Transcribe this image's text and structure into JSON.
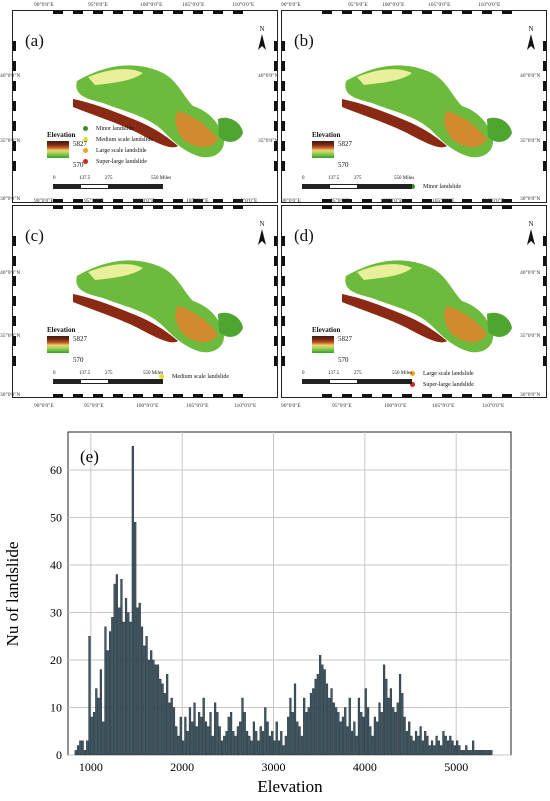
{
  "maps": [
    {
      "label": "(a)",
      "legend": [
        {
          "text": "Minor landslide",
          "color": "#3a8f2b"
        },
        {
          "text": "Medium scale landslide",
          "color": "#d9e43a"
        },
        {
          "text": "Large scale landslide",
          "color": "#f2a31b"
        },
        {
          "text": "Super-large landslide",
          "color": "#d62222"
        }
      ],
      "elevation_title": "Elevation",
      "elev_high": "5827",
      "elev_low": "570",
      "scale": [
        "0",
        "137.5",
        "275",
        "550 Miles"
      ]
    },
    {
      "label": "(b)",
      "legend": [
        {
          "text": "Minor landslide",
          "color": "#3a8f2b"
        }
      ],
      "elevation_title": "Elevation",
      "elev_high": "5827",
      "elev_low": "570",
      "scale": [
        "0",
        "137.5",
        "275",
        "550 Miles"
      ]
    },
    {
      "label": "(c)",
      "legend": [
        {
          "text": "Medium scale landslide",
          "color": "#d9e43a"
        }
      ],
      "elevation_title": "Elevation",
      "elev_high": "5827",
      "elev_low": "570",
      "scale": [
        "0",
        "137.5",
        "275",
        "550 Miles"
      ]
    },
    {
      "label": "(d)",
      "legend": [
        {
          "text": "Large scale landslide",
          "color": "#f2a31b"
        },
        {
          "text": "Super-large landslide",
          "color": "#d62222"
        }
      ],
      "elevation_title": "Elevation",
      "elev_high": "5827",
      "elev_low": "570",
      "scale": [
        "0",
        "137.5",
        "275",
        "550 Miles"
      ]
    }
  ],
  "north_label": "N",
  "lon_labels": [
    "90°0'0\"E",
    "95°0'0\"E",
    "100°0'0\"E",
    "105°0'0\"E",
    "110°0'0\"E"
  ],
  "lat_labels": [
    "40°0'0\"N",
    "35°0'0\"N",
    "30°0'0\"N"
  ],
  "chart_data": {
    "type": "bar",
    "panel_label": "(e)",
    "xlabel": "Elevation",
    "ylabel": "Nu of landslide",
    "xlim": [
      750,
      5600
    ],
    "ylim": [
      0,
      68
    ],
    "xticks": [
      1000,
      2000,
      3000,
      4000,
      5000
    ],
    "yticks": [
      0,
      10,
      20,
      30,
      40,
      50,
      60
    ],
    "grid": true,
    "bar_color": "#3d5866",
    "bin_width": 25,
    "bins": [
      [
        825,
        1
      ],
      [
        850,
        2
      ],
      [
        875,
        3
      ],
      [
        900,
        3
      ],
      [
        925,
        1
      ],
      [
        950,
        3
      ],
      [
        975,
        25
      ],
      [
        1000,
        8
      ],
      [
        1025,
        9
      ],
      [
        1050,
        14
      ],
      [
        1075,
        12
      ],
      [
        1100,
        18
      ],
      [
        1125,
        7
      ],
      [
        1150,
        27
      ],
      [
        1175,
        22
      ],
      [
        1200,
        26
      ],
      [
        1225,
        29
      ],
      [
        1250,
        36
      ],
      [
        1275,
        38
      ],
      [
        1300,
        31
      ],
      [
        1325,
        37
      ],
      [
        1350,
        28
      ],
      [
        1375,
        33
      ],
      [
        1400,
        30
      ],
      [
        1425,
        28
      ],
      [
        1450,
        65
      ],
      [
        1475,
        49
      ],
      [
        1500,
        31
      ],
      [
        1525,
        32
      ],
      [
        1550,
        27
      ],
      [
        1575,
        23
      ],
      [
        1600,
        25
      ],
      [
        1625,
        20
      ],
      [
        1650,
        22
      ],
      [
        1675,
        20
      ],
      [
        1700,
        19
      ],
      [
        1725,
        19
      ],
      [
        1750,
        16
      ],
      [
        1775,
        15
      ],
      [
        1800,
        13
      ],
      [
        1825,
        17
      ],
      [
        1850,
        11
      ],
      [
        1875,
        12
      ],
      [
        1900,
        10
      ],
      [
        1925,
        6
      ],
      [
        1950,
        4
      ],
      [
        1975,
        8
      ],
      [
        2000,
        3
      ],
      [
        2025,
        8
      ],
      [
        2050,
        5
      ],
      [
        2075,
        10
      ],
      [
        2100,
        7
      ],
      [
        2125,
        11
      ],
      [
        2150,
        6
      ],
      [
        2175,
        9
      ],
      [
        2200,
        8
      ],
      [
        2225,
        12
      ],
      [
        2250,
        7
      ],
      [
        2275,
        6
      ],
      [
        2300,
        9
      ],
      [
        2325,
        4
      ],
      [
        2350,
        11
      ],
      [
        2375,
        9
      ],
      [
        2400,
        6
      ],
      [
        2425,
        3
      ],
      [
        2450,
        4
      ],
      [
        2475,
        5
      ],
      [
        2500,
        8
      ],
      [
        2525,
        9
      ],
      [
        2550,
        5
      ],
      [
        2575,
        4
      ],
      [
        2600,
        6
      ],
      [
        2625,
        7
      ],
      [
        2650,
        12
      ],
      [
        2675,
        9
      ],
      [
        2700,
        5
      ],
      [
        2725,
        4
      ],
      [
        2750,
        3
      ],
      [
        2775,
        7
      ],
      [
        2800,
        5
      ],
      [
        2825,
        3
      ],
      [
        2850,
        6
      ],
      [
        2875,
        5
      ],
      [
        2900,
        10
      ],
      [
        2925,
        7
      ],
      [
        2950,
        4
      ],
      [
        2975,
        5
      ],
      [
        3000,
        3
      ],
      [
        3025,
        7
      ],
      [
        3050,
        3
      ],
      [
        3075,
        5
      ],
      [
        3100,
        2
      ],
      [
        3125,
        4
      ],
      [
        3150,
        8
      ],
      [
        3175,
        12
      ],
      [
        3200,
        9
      ],
      [
        3225,
        15
      ],
      [
        3250,
        7
      ],
      [
        3275,
        6
      ],
      [
        3300,
        4
      ],
      [
        3325,
        12
      ],
      [
        3350,
        9
      ],
      [
        3375,
        10
      ],
      [
        3400,
        13
      ],
      [
        3425,
        14
      ],
      [
        3450,
        16
      ],
      [
        3475,
        17
      ],
      [
        3500,
        21
      ],
      [
        3525,
        19
      ],
      [
        3550,
        18
      ],
      [
        3575,
        15
      ],
      [
        3600,
        12
      ],
      [
        3625,
        14
      ],
      [
        3650,
        11
      ],
      [
        3675,
        10
      ],
      [
        3700,
        9
      ],
      [
        3725,
        7
      ],
      [
        3750,
        8
      ],
      [
        3775,
        10
      ],
      [
        3800,
        6
      ],
      [
        3825,
        12
      ],
      [
        3850,
        5
      ],
      [
        3875,
        7
      ],
      [
        3900,
        4
      ],
      [
        3925,
        12
      ],
      [
        3950,
        9
      ],
      [
        3975,
        8
      ],
      [
        4000,
        14
      ],
      [
        4025,
        10
      ],
      [
        4050,
        6
      ],
      [
        4075,
        4
      ],
      [
        4100,
        8
      ],
      [
        4125,
        7
      ],
      [
        4150,
        11
      ],
      [
        4175,
        9
      ],
      [
        4200,
        19
      ],
      [
        4225,
        16
      ],
      [
        4250,
        12
      ],
      [
        4275,
        14
      ],
      [
        4300,
        10
      ],
      [
        4325,
        9
      ],
      [
        4350,
        11
      ],
      [
        4375,
        17
      ],
      [
        4400,
        13
      ],
      [
        4425,
        8
      ],
      [
        4450,
        5
      ],
      [
        4475,
        7
      ],
      [
        4500,
        4
      ],
      [
        4525,
        3
      ],
      [
        4550,
        5
      ],
      [
        4575,
        4
      ],
      [
        4600,
        6
      ],
      [
        4625,
        3
      ],
      [
        4650,
        5
      ],
      [
        4675,
        4
      ],
      [
        4700,
        2
      ],
      [
        4725,
        3
      ],
      [
        4750,
        2
      ],
      [
        4775,
        4
      ],
      [
        4800,
        3
      ],
      [
        4825,
        2
      ],
      [
        4850,
        5
      ],
      [
        4875,
        4
      ],
      [
        4900,
        3
      ],
      [
        4925,
        4
      ],
      [
        4950,
        3
      ],
      [
        4975,
        2
      ],
      [
        5000,
        3
      ],
      [
        5025,
        2
      ],
      [
        5050,
        1
      ],
      [
        5075,
        1
      ],
      [
        5100,
        2
      ],
      [
        5125,
        1
      ],
      [
        5150,
        1
      ],
      [
        5175,
        3
      ],
      [
        5200,
        1
      ],
      [
        5225,
        1
      ],
      [
        5250,
        1
      ],
      [
        5275,
        1
      ],
      [
        5300,
        1
      ],
      [
        5325,
        1
      ],
      [
        5350,
        1
      ],
      [
        5375,
        1
      ]
    ]
  }
}
